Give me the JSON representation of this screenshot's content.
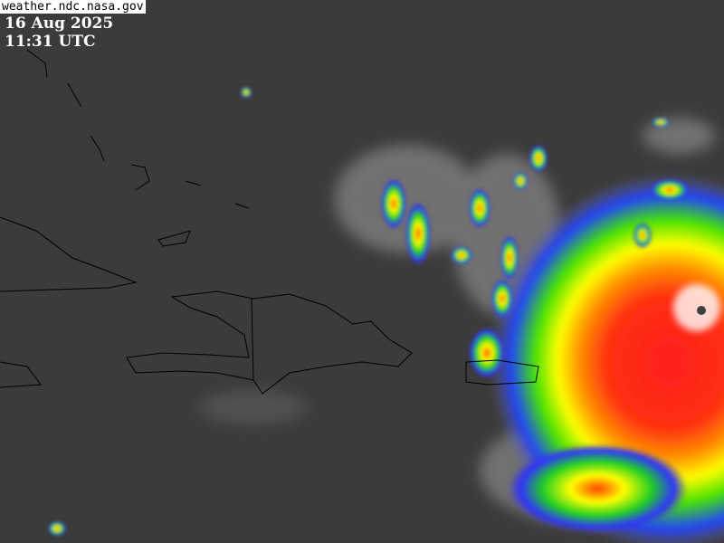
{
  "credit": "weather.ndc.nasa.gov",
  "date": "16 Aug 2025",
  "time": "11:31 UTC",
  "imagery": {
    "type": "enhanced infrared satellite image",
    "colors": {
      "background": "#3b3b3b",
      "coastline": "#000000",
      "cold_tops": [
        "#0000c8",
        "#00c800",
        "#ffff00",
        "#ff8000",
        "#ff0000",
        "#ffffff"
      ]
    }
  }
}
